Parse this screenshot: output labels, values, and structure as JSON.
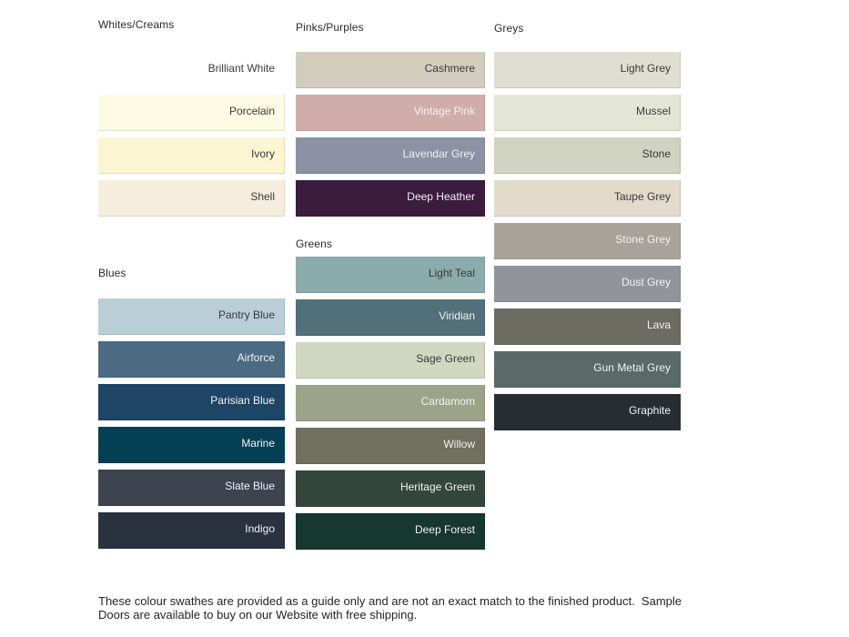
{
  "page": {
    "background": "#ffffff"
  },
  "colors": {
    "heading": "#2b2b2b",
    "label_dark": "#3a3a3a",
    "label_light": "#f2f1f2"
  },
  "sections": [
    {
      "id": "whites-creams",
      "title": "Whites/Creams",
      "swatches": [
        {
          "name": "Brilliant White",
          "color": "#ffffff",
          "text": "dark"
        },
        {
          "name": "Porcelain",
          "color": "#fefbe4",
          "text": "dark"
        },
        {
          "name": "Ivory",
          "color": "#fbf5d2",
          "text": "dark"
        },
        {
          "name": "Shell",
          "color": "#f6eedd",
          "text": "dark"
        }
      ]
    },
    {
      "id": "blues",
      "title": "Blues",
      "swatches": [
        {
          "name": "Pantry Blue",
          "color": "#b9ced7",
          "text": "dark"
        },
        {
          "name": "Airforce",
          "color": "#4d6a83",
          "text": "light"
        },
        {
          "name": "Parisian Blue",
          "color": "#1e4466",
          "text": "light"
        },
        {
          "name": "Marine",
          "color": "#053f54",
          "text": "light"
        },
        {
          "name": "Slate Blue",
          "color": "#3d4450",
          "text": "light"
        },
        {
          "name": "Indigo",
          "color": "#2a323f",
          "text": "light"
        }
      ]
    },
    {
      "id": "pinks-purples",
      "title": "Pinks/Purples",
      "swatches": [
        {
          "name": "Cashmere",
          "color": "#d2cdbd",
          "text": "dark"
        },
        {
          "name": "Vintage Pink",
          "color": "#d0ada9",
          "text": "light"
        },
        {
          "name": "Lavendar Grey",
          "color": "#8c92a4",
          "text": "light"
        },
        {
          "name": "Deep Heather",
          "color": "#3b1c3e",
          "text": "light"
        }
      ]
    },
    {
      "id": "greens",
      "title": "Greens",
      "swatches": [
        {
          "name": "Light Teal",
          "color": "#8bacaa",
          "text": "dark"
        },
        {
          "name": "Viridian",
          "color": "#527079",
          "text": "light"
        },
        {
          "name": "Sage Green",
          "color": "#d1d7c1",
          "text": "dark"
        },
        {
          "name": "Cardamom",
          "color": "#9ba489",
          "text": "light"
        },
        {
          "name": "Willow",
          "color": "#6f705d",
          "text": "light"
        },
        {
          "name": "Heritage Green",
          "color": "#33463d",
          "text": "light"
        },
        {
          "name": "Deep Forest",
          "color": "#16382f",
          "text": "light"
        }
      ]
    },
    {
      "id": "greys",
      "title": "Greys",
      "swatches": [
        {
          "name": "Light Grey",
          "color": "#dedfd2",
          "text": "dark"
        },
        {
          "name": "Mussel",
          "color": "#e4e6d5",
          "text": "dark"
        },
        {
          "name": "Stone",
          "color": "#cfd3c0",
          "text": "dark"
        },
        {
          "name": "Taupe Grey",
          "color": "#e2dacb",
          "text": "dark"
        },
        {
          "name": "Stone Grey",
          "color": "#a8a29a",
          "text": "light"
        },
        {
          "name": "Dust Grey",
          "color": "#93949b",
          "text": "light"
        },
        {
          "name": "Lava",
          "color": "#6c6c63",
          "text": "light"
        },
        {
          "name": "Gun Metal Grey",
          "color": "#5a6a68",
          "text": "light"
        },
        {
          "name": "Graphite",
          "color": "#272d33",
          "text": "light"
        }
      ]
    }
  ],
  "footer": {
    "text": "These colour swathes are provided as a guide only and are not an exact match to the finished product.  Sample Doors are available to buy on our Website with free shipping."
  }
}
